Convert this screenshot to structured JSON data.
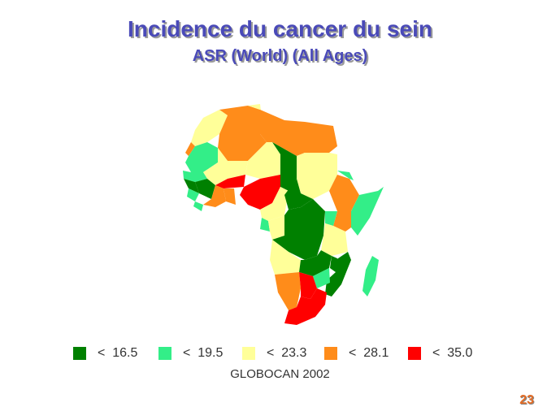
{
  "title": "Incidence du cancer du sein",
  "subtitle": "ASR (World) (All Ages)",
  "source": "GLOBOCAN 2002",
  "page_number": "23",
  "legend": [
    {
      "label": "<  16.5",
      "color": "#008000"
    },
    {
      "label": "<  19.5",
      "color": "#33ee88"
    },
    {
      "label": "<  23.3",
      "color": "#ffff99"
    },
    {
      "label": "<  28.1",
      "color": "#ff8c1a"
    },
    {
      "label": "<  35.0",
      "color": "#ff0000"
    }
  ]
}
